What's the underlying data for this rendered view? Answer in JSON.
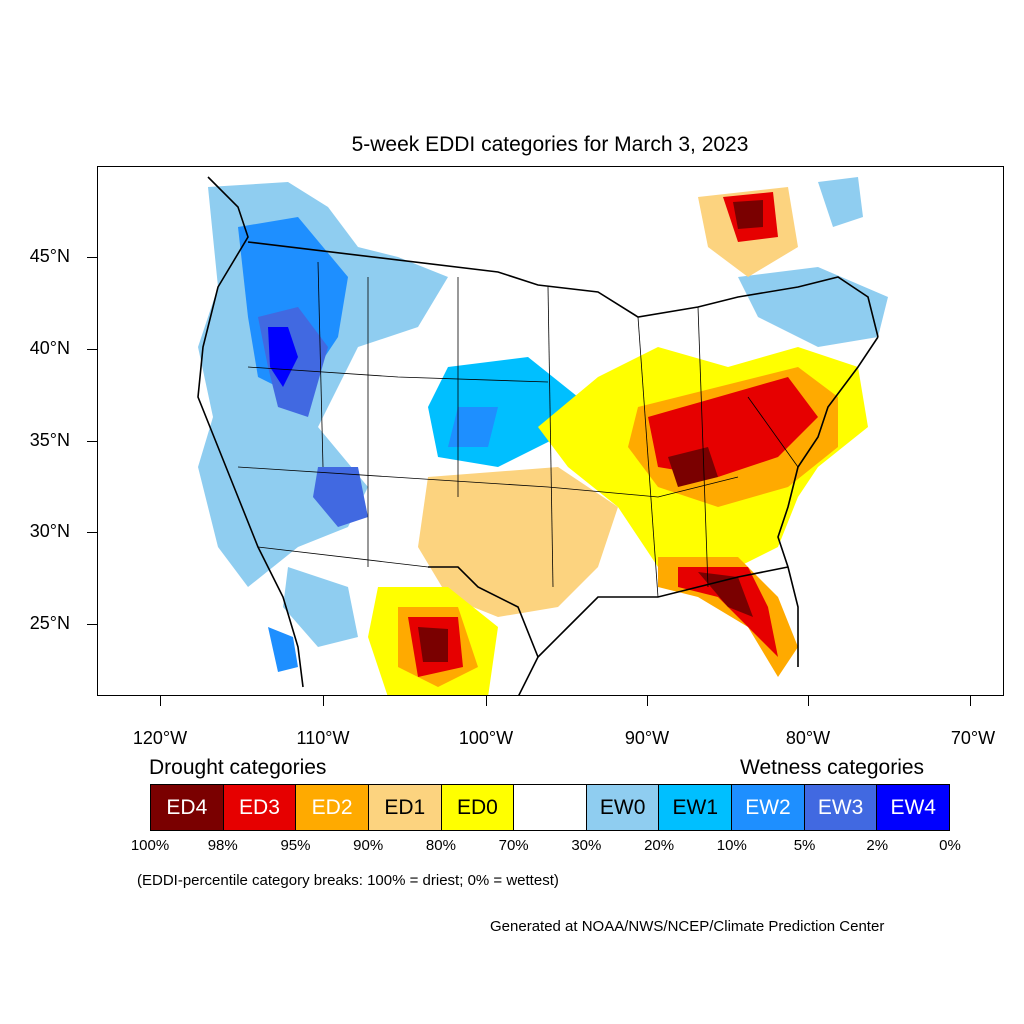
{
  "title": "5-week EDDI categories for March 3, 2023",
  "lat_labels": [
    "45°N",
    "40°N",
    "35°N",
    "30°N",
    "25°N"
  ],
  "lon_labels": [
    "120°W",
    "110°W",
    "100°W",
    "90°W",
    "80°W",
    "70°W"
  ],
  "drought_heading": "Drought categories",
  "wetness_heading": "Wetness categories",
  "categories": [
    {
      "label": "ED4",
      "color": "#7a0000",
      "text_color": "#ffffff"
    },
    {
      "label": "ED3",
      "color": "#e60000",
      "text_color": "#ffffff"
    },
    {
      "label": "ED2",
      "color": "#ffaa00",
      "text_color": "#ffffff"
    },
    {
      "label": "ED1",
      "color": "#fcd37f",
      "text_color": "#000000"
    },
    {
      "label": "ED0",
      "color": "#ffff00",
      "text_color": "#000000"
    },
    {
      "label": "",
      "color": "#ffffff",
      "text_color": "#000000"
    },
    {
      "label": "EW0",
      "color": "#8fcdf0",
      "text_color": "#000000"
    },
    {
      "label": "EW1",
      "color": "#00bfff",
      "text_color": "#000000"
    },
    {
      "label": "EW2",
      "color": "#1e8fff",
      "text_color": "#ffffff"
    },
    {
      "label": "EW3",
      "color": "#4169e1",
      "text_color": "#ffffff"
    },
    {
      "label": "EW4",
      "color": "#0000ff",
      "text_color": "#ffffff"
    }
  ],
  "percent_breaks": [
    "100%",
    "98%",
    "95%",
    "90%",
    "80%",
    "70%",
    "30%",
    "20%",
    "10%",
    "5%",
    "2%",
    "0%"
  ],
  "note": "(EDDI-percentile category breaks: 100% = driest; 0% = wettest)",
  "credit": "Generated at NOAA/NWS/NCEP/Climate Prediction Center"
}
